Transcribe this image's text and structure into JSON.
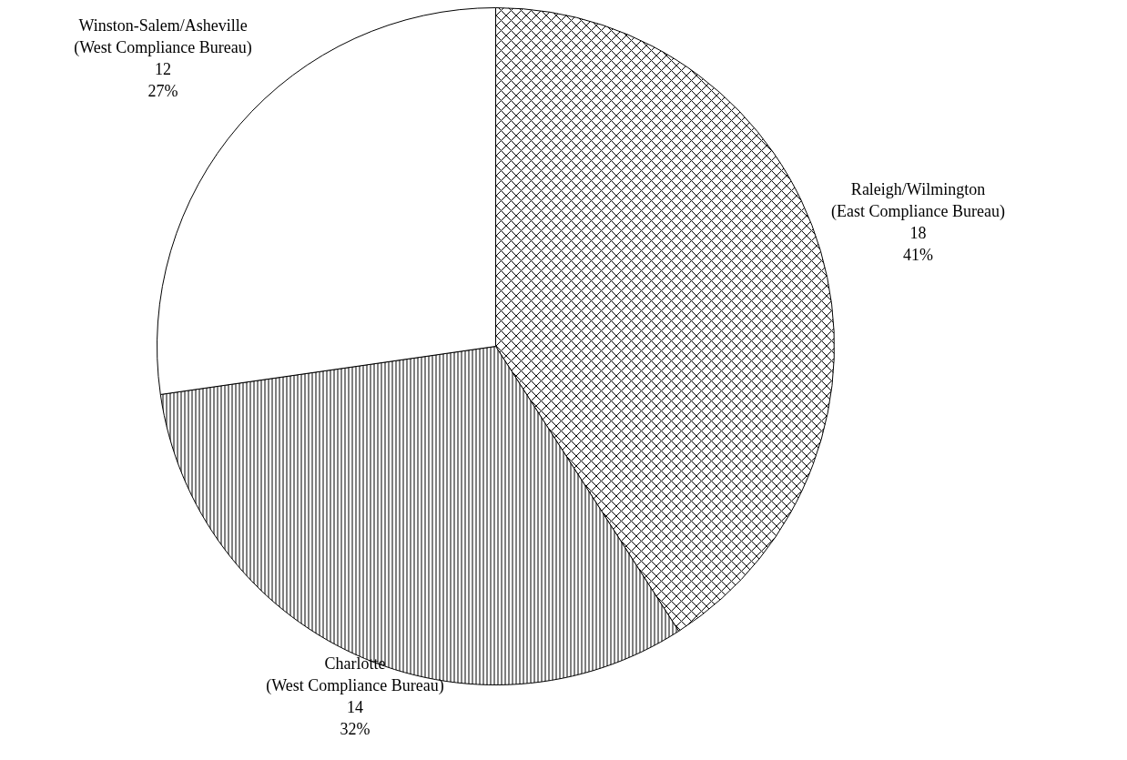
{
  "chart_data": {
    "type": "pie",
    "categories": [
      "Raleigh/Wilmington\n(East Compliance Bureau)",
      "Charlotte\n(West Compliance Bureau)",
      "Winston-Salem/Asheville\n(West Compliance Bureau)"
    ],
    "values": [
      18,
      14,
      12
    ],
    "value_labels": [
      "18\n41%",
      "14\n32%",
      "12\n27%"
    ],
    "colors": [
      "#ffffff",
      "#ffffff",
      "#ffffff"
    ]
  }
}
